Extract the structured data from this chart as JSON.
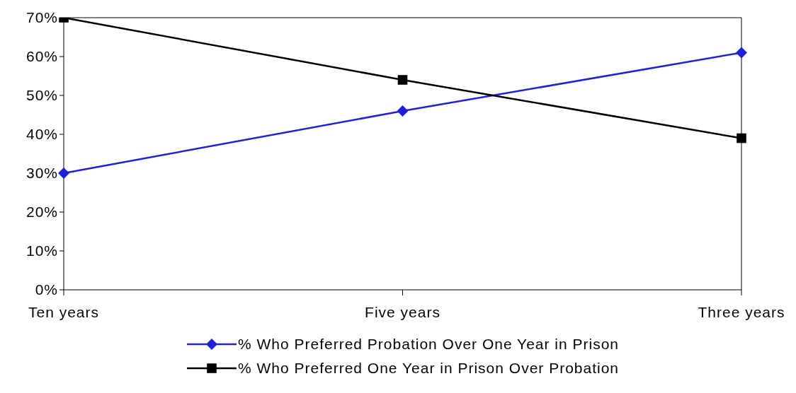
{
  "chart_data": {
    "type": "line",
    "categories": [
      "Ten years",
      "Five years",
      "Three years"
    ],
    "series": [
      {
        "name": "% Who Preferred Probation Over One Year in Prison",
        "color": "#2020d8",
        "values": [
          30,
          46,
          61
        ],
        "marker": "diamond"
      },
      {
        "name": "% Who Preferred One Year in Prison Over Probation",
        "color": "#000000",
        "values": [
          70,
          54,
          39
        ],
        "marker": "square"
      }
    ],
    "ylim": [
      0,
      70
    ],
    "yticks": [
      {
        "value": 0,
        "label": "0%"
      },
      {
        "value": 10,
        "label": "10%"
      },
      {
        "value": 20,
        "label": "20%"
      },
      {
        "value": 30,
        "label": "30%"
      },
      {
        "value": 40,
        "label": "40%"
      },
      {
        "value": 50,
        "label": "50%"
      },
      {
        "value": 60,
        "label": "60%"
      },
      {
        "value": 70,
        "label": "70%"
      }
    ],
    "grid": false,
    "legend": "bottom",
    "line_style": "solid"
  }
}
